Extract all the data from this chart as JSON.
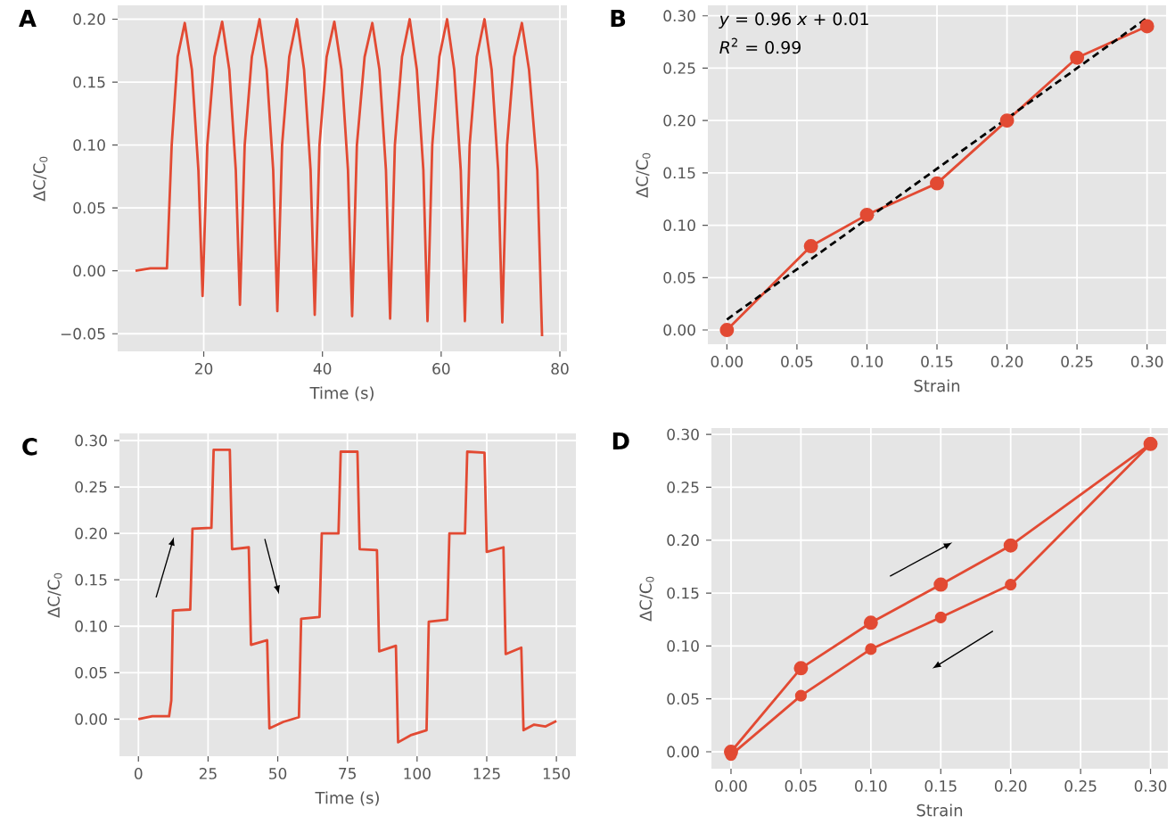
{
  "chart_data": [
    {
      "type": "line",
      "title": "A",
      "xlabel": "Time (s)",
      "ylabel": "ΔC/C$_{0}$",
      "xlim": [
        5.5,
        81.2
      ],
      "ylim": [
        -0.064,
        0.211
      ],
      "xticks": [
        20,
        40,
        60,
        80
      ],
      "yticks": [
        {
          "value": -0.05,
          "label": "−0.05"
        },
        {
          "value": 0,
          "label": "0.00"
        },
        {
          "value": 0.05,
          "label": "0.05"
        },
        {
          "value": 0.1,
          "label": "0.10"
        },
        {
          "value": 0.15,
          "label": "0.15"
        },
        {
          "value": 0.2,
          "label": "0.20"
        }
      ],
      "grid": true,
      "marker": "none",
      "line_style": "solid",
      "series": [
        {
          "color": "#e24a33",
          "x": [
            8.5,
            11,
            13.8,
            14.6,
            15.6,
            16.8,
            18,
            19.1,
            19.8,
            20.6,
            21.8,
            23.1,
            24.3,
            25.4,
            26.1,
            26.9,
            28.1,
            29.4,
            30.6,
            31.7,
            32.4,
            33.2,
            34.4,
            35.7,
            36.9,
            38,
            38.7,
            39.5,
            40.7,
            42,
            43.2,
            44.3,
            45,
            45.8,
            47.1,
            48.4,
            49.6,
            50.7,
            51.4,
            52.2,
            53.4,
            54.7,
            55.9,
            57,
            57.7,
            58.5,
            59.7,
            61,
            62.2,
            63.3,
            64,
            64.8,
            66,
            67.3,
            68.5,
            69.6,
            70.3,
            71.1,
            72.3,
            73.6,
            74.8,
            76.2,
            77
          ],
          "values": [
            0.0,
            0.002,
            0.002,
            0.1,
            0.17,
            0.197,
            0.16,
            0.08,
            -0.02,
            0.1,
            0.17,
            0.198,
            0.16,
            0.08,
            -0.027,
            0.1,
            0.17,
            0.2,
            0.16,
            0.08,
            -0.032,
            0.1,
            0.17,
            0.2,
            0.16,
            0.08,
            -0.035,
            0.1,
            0.17,
            0.198,
            0.16,
            0.08,
            -0.036,
            0.1,
            0.17,
            0.197,
            0.16,
            0.08,
            -0.038,
            0.1,
            0.17,
            0.2,
            0.16,
            0.08,
            -0.04,
            0.1,
            0.17,
            0.2,
            0.16,
            0.08,
            -0.04,
            0.1,
            0.17,
            0.2,
            0.16,
            0.08,
            -0.041,
            0.1,
            0.17,
            0.197,
            0.16,
            0.08,
            -0.052
          ]
        }
      ]
    },
    {
      "type": "line",
      "title": "B",
      "xlabel": "Strain",
      "ylabel": "ΔC/C$_{0}$",
      "xlim": [
        -0.0136,
        0.3136
      ],
      "ylim": [
        -0.0136,
        0.31
      ],
      "xticks": [
        {
          "value": 0,
          "label": "0.00"
        },
        {
          "value": 0.05,
          "label": "0.05"
        },
        {
          "value": 0.1,
          "label": "0.10"
        },
        {
          "value": 0.15,
          "label": "0.15"
        },
        {
          "value": 0.2,
          "label": "0.20"
        },
        {
          "value": 0.25,
          "label": "0.25"
        },
        {
          "value": 0.3,
          "label": "0.30"
        }
      ],
      "yticks": [
        {
          "value": 0,
          "label": "0.00"
        },
        {
          "value": 0.05,
          "label": "0.05"
        },
        {
          "value": 0.1,
          "label": "0.10"
        },
        {
          "value": 0.15,
          "label": "0.15"
        },
        {
          "value": 0.2,
          "label": "0.20"
        },
        {
          "value": 0.25,
          "label": "0.25"
        },
        {
          "value": 0.3,
          "label": "0.30"
        }
      ],
      "grid": true,
      "marker": "circle",
      "line_style": "solid",
      "annotations": [
        "*y* = 0.96 *x* + 0.01",
        "*R*$^{2}$ = 0.99"
      ],
      "series": [
        {
          "color": "#e24a33",
          "x": [
            0,
            0.06,
            0.1,
            0.15,
            0.2,
            0.25,
            0.3
          ],
          "values": [
            0,
            0.08,
            0.11,
            0.14,
            0.2,
            0.26,
            0.29
          ]
        },
        {
          "color": "#000000",
          "marker": "none",
          "line_style": "dashed",
          "x": [
            0,
            0.3
          ],
          "values": [
            0.01,
            0.298
          ]
        }
      ]
    },
    {
      "type": "line",
      "title": "C",
      "xlabel": "Time (s)",
      "ylabel": "ΔC/C$_{0}$",
      "xlim": [
        -6.8,
        157
      ],
      "ylim": [
        -0.04,
        0.3077
      ],
      "xticks": [
        0,
        25,
        50,
        75,
        100,
        125,
        150
      ],
      "yticks": [
        {
          "value": 0,
          "label": "0.00"
        },
        {
          "value": 0.05,
          "label": "0.05"
        },
        {
          "value": 0.1,
          "label": "0.10"
        },
        {
          "value": 0.15,
          "label": "0.15"
        },
        {
          "value": 0.2,
          "label": "0.20"
        },
        {
          "value": 0.25,
          "label": "0.25"
        },
        {
          "value": 0.3,
          "label": "0.30"
        }
      ],
      "grid": true,
      "marker": "none",
      "line_style": "solid",
      "series": [
        {
          "color": "#e24a33",
          "x": [
            0,
            5,
            11,
            11.8,
            12.4,
            18.6,
            19.4,
            26.2,
            27,
            32.8,
            33.6,
            39.6,
            40.4,
            46.2,
            47,
            52,
            57.6,
            58.4,
            65,
            65.8,
            71.8,
            72.6,
            78.6,
            79.4,
            85.6,
            86.4,
            92.4,
            93.2,
            98,
            103.4,
            104.2,
            110.8,
            111.6,
            117.2,
            118,
            124.2,
            125,
            131,
            131.8,
            137.4,
            138.2,
            142,
            146,
            150
          ],
          "values": [
            0.0,
            0.003,
            0.003,
            0.02,
            0.117,
            0.118,
            0.205,
            0.206,
            0.29,
            0.29,
            0.183,
            0.185,
            0.08,
            0.085,
            -0.01,
            -0.003,
            0.002,
            0.108,
            0.11,
            0.2,
            0.2,
            0.288,
            0.288,
            0.183,
            0.182,
            0.073,
            0.079,
            -0.025,
            -0.017,
            -0.012,
            0.105,
            0.107,
            0.2,
            0.2,
            0.288,
            0.287,
            0.18,
            0.185,
            0.07,
            0.077,
            -0.012,
            -0.006,
            -0.008,
            -0.002
          ]
        }
      ]
    },
    {
      "type": "line",
      "title": "D",
      "xlabel": "Strain",
      "ylabel": "ΔC/C$_{0}$",
      "xlim": [
        -0.014,
        0.3124
      ],
      "ylim": [
        -0.016,
        0.306
      ],
      "xticks": [
        {
          "value": 0,
          "label": "0.00"
        },
        {
          "value": 0.05,
          "label": "0.05"
        },
        {
          "value": 0.1,
          "label": "0.10"
        },
        {
          "value": 0.15,
          "label": "0.15"
        },
        {
          "value": 0.2,
          "label": "0.20"
        },
        {
          "value": 0.25,
          "label": "0.25"
        },
        {
          "value": 0.3,
          "label": "0.30"
        }
      ],
      "yticks": [
        {
          "value": 0,
          "label": "0.00"
        },
        {
          "value": 0.05,
          "label": "0.05"
        },
        {
          "value": 0.1,
          "label": "0.10"
        },
        {
          "value": 0.15,
          "label": "0.15"
        },
        {
          "value": 0.2,
          "label": "0.20"
        },
        {
          "value": 0.25,
          "label": "0.25"
        },
        {
          "value": 0.3,
          "label": "0.30"
        }
      ],
      "grid": true,
      "marker": "circle",
      "line_style": "solid",
      "series": [
        {
          "color": "#e24a33",
          "x": [
            0,
            0.05,
            0.1,
            0.15,
            0.2,
            0.3
          ],
          "values": [
            0,
            0.079,
            0.122,
            0.158,
            0.195,
            0.291
          ]
        },
        {
          "color": "#e24a33",
          "x": [
            0.3,
            0.2,
            0.15,
            0.1,
            0.05,
            0
          ],
          "values": [
            0.291,
            0.158,
            0.127,
            0.097,
            0.053,
            -0.003
          ]
        }
      ]
    }
  ]
}
